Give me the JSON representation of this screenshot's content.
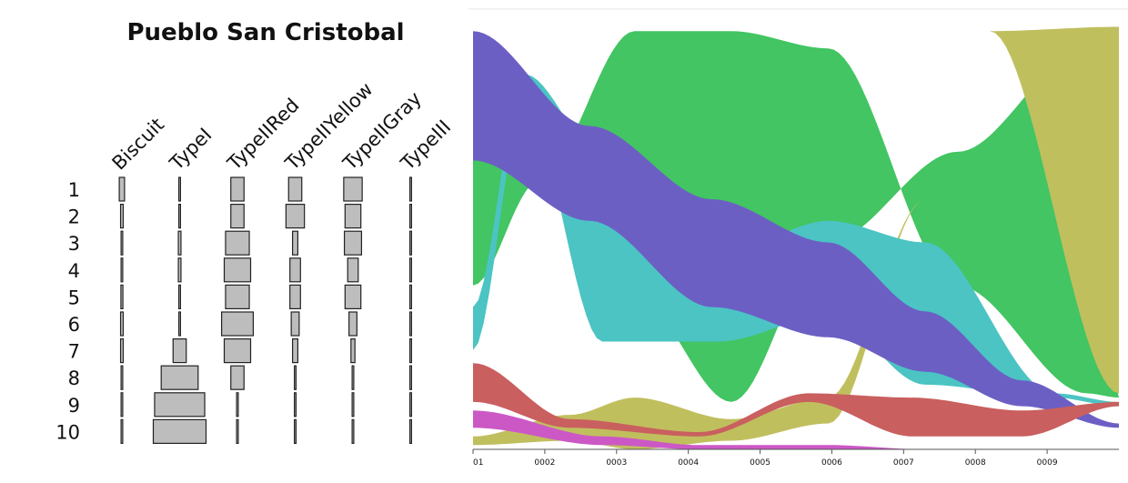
{
  "chart_data": [
    {
      "type": "battleship",
      "title": "Pueblo San Cristobal",
      "columns": [
        "Biscuit",
        "TypeI",
        "TypeIIRed",
        "TypeIIYellow",
        "TypeIIGray",
        "TypeIII"
      ],
      "rows": [
        "1",
        "2",
        "3",
        "4",
        "5",
        "6",
        "7",
        "8",
        "9",
        "10"
      ],
      "values": [
        [
          4,
          1,
          10,
          10,
          14,
          1
        ],
        [
          2,
          0.5,
          10,
          14,
          12,
          1
        ],
        [
          0.5,
          2,
          18,
          4,
          13,
          1
        ],
        [
          0.5,
          2,
          20,
          8,
          8,
          0.5
        ],
        [
          1.5,
          0.5,
          18,
          8,
          12,
          0.5
        ],
        [
          2,
          1,
          24,
          6,
          6,
          0.5
        ],
        [
          2,
          10,
          20,
          4,
          3,
          0.5
        ],
        [
          0.5,
          28,
          10,
          0.5,
          1,
          0.5
        ],
        [
          0.5,
          38,
          1,
          0.5,
          0.5,
          0.5
        ],
        [
          0.5,
          40,
          0.5,
          0.5,
          0.5,
          0.5
        ]
      ],
      "colors": {
        "bar_fill": "#bdbdbd",
        "bar_stroke": "#222222"
      }
    },
    {
      "type": "area",
      "xlabel": "",
      "ylabel": "",
      "ticks": [
        "01",
        "0002",
        "0003",
        "0004",
        "0005",
        "0006",
        "0007",
        "0008",
        "0009"
      ],
      "series": [
        {
          "color": "#42c562",
          "keyframes": [
            [
              0.0,
              0.38,
              0.73
            ],
            [
              0.1,
              0.62,
              0.68
            ],
            [
              0.25,
              0.97,
              0.36
            ],
            [
              0.4,
              0.97,
              0.11
            ],
            [
              0.55,
              0.93,
              0.48
            ],
            [
              0.75,
              0.38,
              0.69
            ],
            [
              0.95,
              0.13,
              0.93
            ],
            [
              1.0,
              0.12,
              0.12
            ]
          ]
        },
        {
          "color": "#c0bf5e",
          "keyframes": [
            [
              0.0,
              0.01,
              0.03
            ],
            [
              0.15,
              0.02,
              0.08
            ],
            [
              0.25,
              0.0,
              0.12
            ],
            [
              0.4,
              0.02,
              0.07
            ],
            [
              0.55,
              0.06,
              0.12
            ],
            [
              0.7,
              0.58,
              0.58
            ],
            [
              0.8,
              0.97,
              0.97
            ],
            [
              1.0,
              0.13,
              0.98
            ]
          ]
        },
        {
          "color": "#4bc4c3",
          "keyframes": [
            [
              0.0,
              0.23,
              0.33
            ],
            [
              0.08,
              0.8,
              0.87
            ],
            [
              0.2,
              0.25,
              0.68
            ],
            [
              0.38,
              0.25,
              0.45
            ],
            [
              0.55,
              0.31,
              0.53
            ],
            [
              0.7,
              0.15,
              0.48
            ],
            [
              0.9,
              0.12,
              0.13
            ],
            [
              1.0,
              0.1,
              0.11
            ]
          ]
        },
        {
          "color": "#6c5fc4",
          "keyframes": [
            [
              0.0,
              0.67,
              0.97
            ],
            [
              0.18,
              0.53,
              0.75
            ],
            [
              0.37,
              0.33,
              0.58
            ],
            [
              0.55,
              0.26,
              0.48
            ],
            [
              0.7,
              0.18,
              0.32
            ],
            [
              0.85,
              0.1,
              0.16
            ],
            [
              1.0,
              0.05,
              0.06
            ]
          ]
        },
        {
          "color": "#c95f5f",
          "keyframes": [
            [
              0.0,
              0.11,
              0.2
            ],
            [
              0.15,
              0.05,
              0.07
            ],
            [
              0.35,
              0.03,
              0.04
            ],
            [
              0.52,
              0.11,
              0.13
            ],
            [
              0.68,
              0.03,
              0.12
            ],
            [
              0.85,
              0.03,
              0.09
            ],
            [
              1.0,
              0.1,
              0.11
            ]
          ]
        },
        {
          "color": "#cc58c6",
          "keyframes": [
            [
              0.0,
              0.05,
              0.09
            ],
            [
              0.2,
              0.01,
              0.03
            ],
            [
              0.35,
              0.0,
              0.01
            ],
            [
              0.55,
              0.0,
              0.01
            ],
            [
              0.7,
              0.0,
              0.0
            ],
            [
              1.0,
              0.0,
              0.0
            ]
          ]
        }
      ]
    }
  ]
}
